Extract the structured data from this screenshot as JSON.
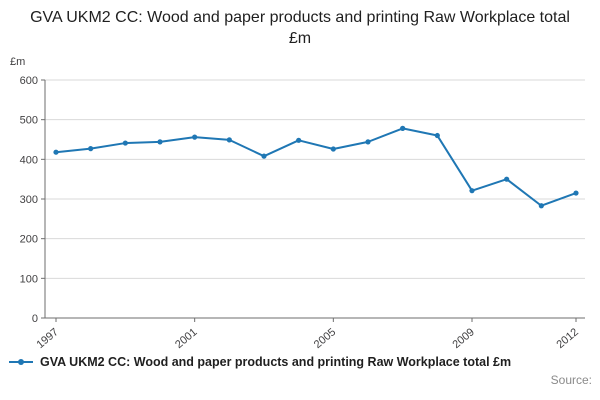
{
  "title": "GVA UKM2 CC: Wood and paper products and printing Raw Workplace total £m",
  "chart_data": {
    "type": "line",
    "x": [
      1997,
      1998,
      1999,
      2000,
      2001,
      2002,
      2003,
      2004,
      2005,
      2006,
      2007,
      2008,
      2009,
      2010,
      2011,
      2012
    ],
    "series": [
      {
        "name": "GVA UKM2 CC: Wood and paper products and printing Raw Workplace total £m",
        "values": [
          418,
          427,
          441,
          444,
          456,
          449,
          408,
          448,
          426,
          444,
          478,
          460,
          321,
          350,
          283,
          315
        ]
      }
    ],
    "title": "GVA UKM2 CC: Wood and paper products and printing Raw Workplace total £m",
    "xlabel": "",
    "ylabel": "£m",
    "ylim": [
      0,
      600
    ],
    "yticks": [
      0,
      100,
      200,
      300,
      400,
      500,
      600
    ],
    "xticks": [
      1997,
      2001,
      2005,
      2009,
      2012
    ],
    "grid": true,
    "legend_position": "bottom",
    "line_color": "#1f77b4"
  },
  "legend": {
    "label": "GVA UKM2 CC: Wood and paper products and printing Raw Workplace total £m"
  },
  "source_label": "Source:"
}
